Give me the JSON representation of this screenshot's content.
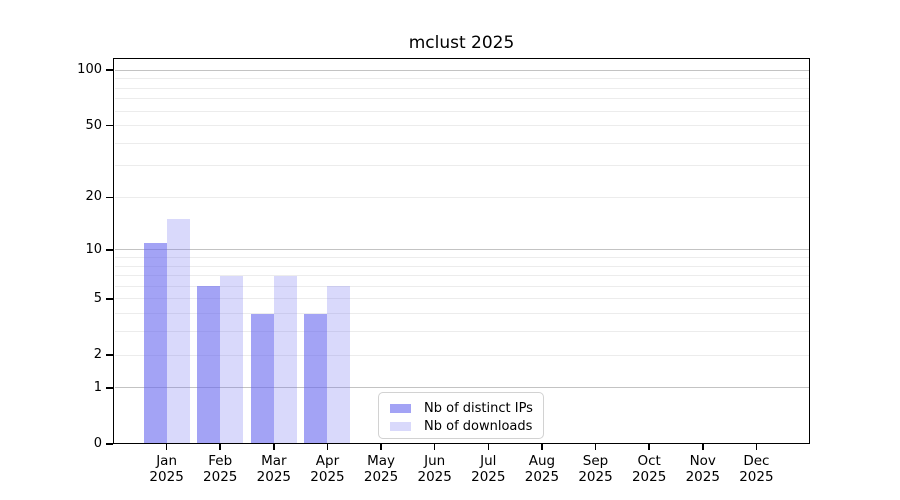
{
  "chart_data": {
    "type": "bar",
    "title": "mclust 2025",
    "xlabel": "",
    "ylabel": "",
    "categories": [
      "Jan",
      "Feb",
      "Mar",
      "Apr",
      "May",
      "Jun",
      "Jul",
      "Aug",
      "Sep",
      "Oct",
      "Nov",
      "Dec"
    ],
    "year_label": "2025",
    "series": [
      {
        "name": "Nb of distinct IPs",
        "color": "rgba(102,102,238,0.6)",
        "values": [
          11,
          6,
          4,
          4,
          0,
          0,
          0,
          0,
          0,
          0,
          0,
          0
        ]
      },
      {
        "name": "Nb of downloads",
        "color": "rgba(102,102,238,0.25)",
        "values": [
          15,
          7,
          7,
          6,
          0,
          0,
          0,
          0,
          0,
          0,
          0,
          0
        ]
      }
    ],
    "yscale": "log10(1+v)",
    "yticks": [
      0,
      1,
      2,
      5,
      10,
      20,
      50,
      100
    ],
    "ylim": [
      0,
      116
    ],
    "grid": {
      "major": [
        1,
        10,
        100
      ],
      "minor": [
        2,
        3,
        4,
        5,
        6,
        7,
        8,
        9,
        20,
        30,
        40,
        50,
        60,
        70,
        80,
        90
      ],
      "major_color": "#c3c3c3",
      "minor_color": "#ececec"
    },
    "legend": {
      "position": "lower center",
      "entries": [
        "Nb of distinct IPs",
        "Nb of downloads"
      ]
    },
    "frame_color": "#000000"
  }
}
